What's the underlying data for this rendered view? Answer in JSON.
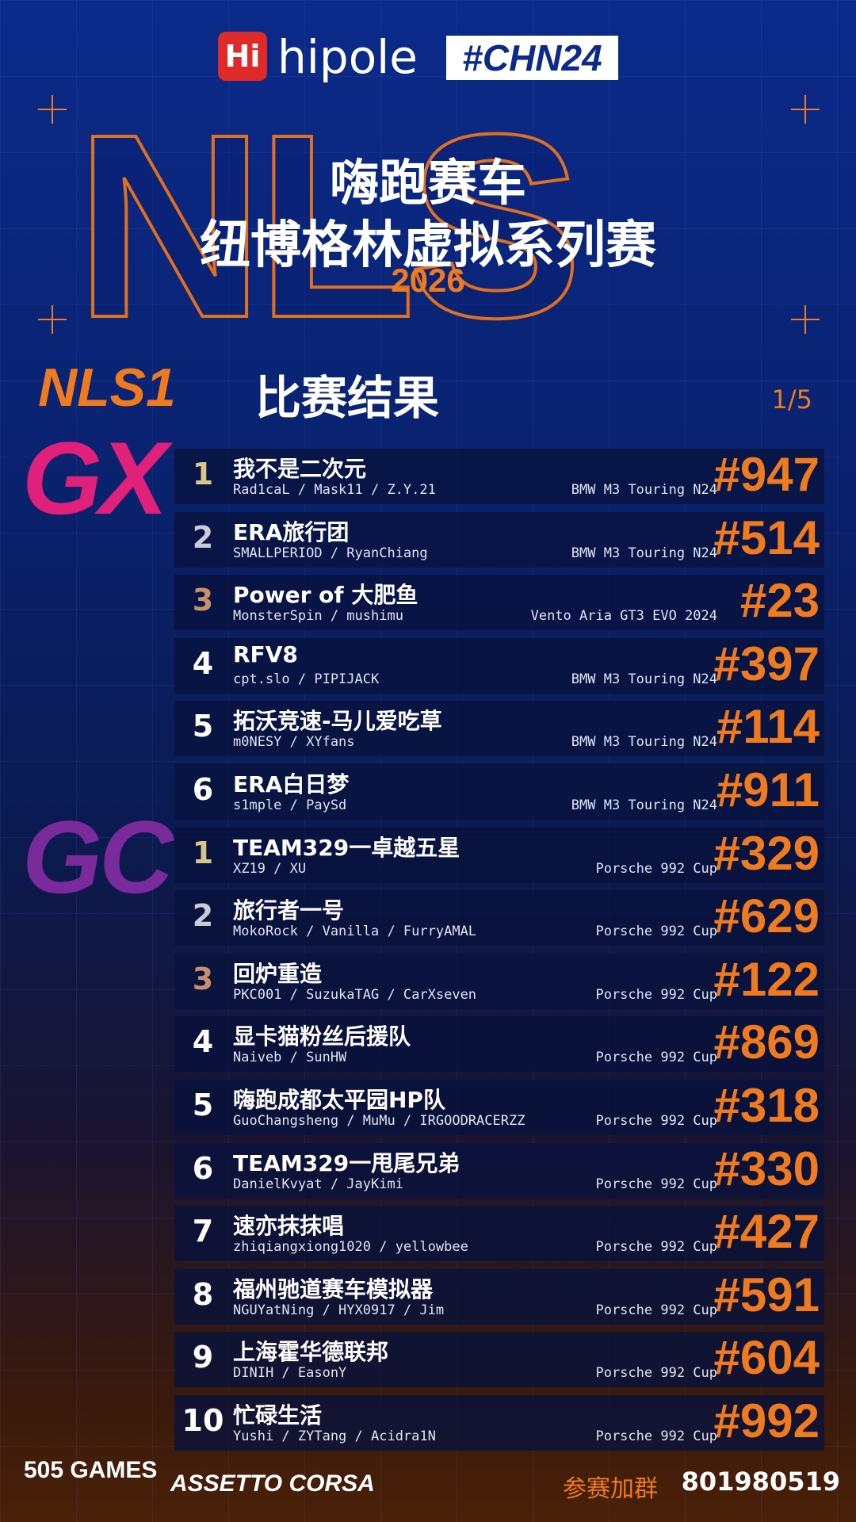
{
  "header": {
    "brand": "hipole",
    "brand_icon": "Hi",
    "hashtag": "#CHN24",
    "backdrop": "NLS",
    "title_line1": "嗨跑赛车",
    "title_line2": "纽博格林虚拟系列赛",
    "year": "2026"
  },
  "section": {
    "race": "NLS1",
    "title": "比赛结果",
    "page": "1/5"
  },
  "classes": [
    {
      "label": "GX",
      "rows": [
        {
          "pos": 1,
          "team": "我不是二次元",
          "drivers": "Rad1caL / Mask11 / Z.Y.21",
          "car": "BMW M3 Touring N24",
          "number": "#947"
        },
        {
          "pos": 2,
          "team": "ERA旅行团",
          "drivers": "SMALLPERIOD / RyanChiang",
          "car": "BMW M3 Touring N24",
          "number": "#514"
        },
        {
          "pos": 3,
          "team": "Power of 大肥鱼",
          "drivers": "MonsterSpin / mushimu",
          "car": "Vento Aria GT3 EVO 2024",
          "number": "#23"
        },
        {
          "pos": 4,
          "team": "RFV8",
          "drivers": "cpt.slo / PIPIJACK",
          "car": "BMW M3 Touring N24",
          "number": "#397"
        },
        {
          "pos": 5,
          "team": "拓沃竞速-马儿爱吃草",
          "drivers": "m0NESY / XYfans",
          "car": "BMW M3 Touring N24",
          "number": "#114"
        },
        {
          "pos": 6,
          "team": "ERA白日梦",
          "drivers": "s1mple / PaySd",
          "car": "BMW M3 Touring N24",
          "number": "#911"
        }
      ]
    },
    {
      "label": "GC",
      "rows": [
        {
          "pos": 1,
          "team": "TEAM329一卓越五星",
          "drivers": "XZ19 / XU",
          "car": "Porsche 992 Cup",
          "number": "#329"
        },
        {
          "pos": 2,
          "team": "旅行者一号",
          "drivers": "MokoRock / Vanilla / FurryAMAL",
          "car": "Porsche 992 Cup",
          "number": "#629"
        },
        {
          "pos": 3,
          "team": "回炉重造",
          "drivers": "PKC001 / SuzukaTAG / CarXseven",
          "car": "Porsche 992 Cup",
          "number": "#122"
        },
        {
          "pos": 4,
          "team": "显卡猫粉丝后援队",
          "drivers": "Naiveb / SunHW",
          "car": "Porsche 992 Cup",
          "number": "#869"
        },
        {
          "pos": 5,
          "team": "嗨跑成都太平园HP队",
          "drivers": "GuoChangsheng / MuMu / IRGOODRACERZZ",
          "car": "Porsche 992 Cup",
          "number": "#318"
        },
        {
          "pos": 6,
          "team": "TEAM329一甩尾兄弟",
          "drivers": "DanielKvyat / JayKimi",
          "car": "Porsche 992 Cup",
          "number": "#330"
        },
        {
          "pos": 7,
          "team": "速亦抹抹唱",
          "drivers": "zhiqiangxiong1020 / yellowbee",
          "car": "Porsche 992 Cup",
          "number": "#427"
        },
        {
          "pos": 8,
          "team": "福州驰道赛车模拟器",
          "drivers": "NGUYatNing / HYX0917 / Jim",
          "car": "Porsche 992 Cup",
          "number": "#591"
        },
        {
          "pos": 9,
          "team": "上海霍华德联邦",
          "drivers": "DINIH / EasonY",
          "car": "Porsche 992 Cup",
          "number": "#604"
        },
        {
          "pos": 10,
          "team": "忙碌生活",
          "drivers": "Yushi / ZYTang / Acidra1N",
          "car": "Porsche 992 Cup",
          "number": "#992"
        }
      ]
    }
  ],
  "footer": {
    "publisher": "505 GAMES",
    "game": "ASSETTO CORSA",
    "join_label": "参赛加群",
    "group_id": "801980519"
  }
}
